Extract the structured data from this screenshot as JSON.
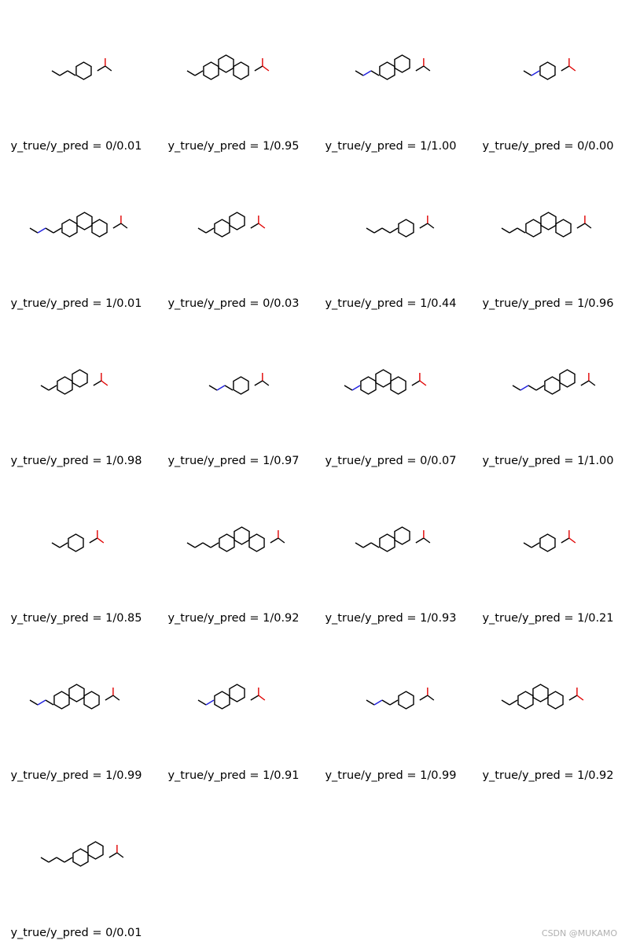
{
  "grid": {
    "molecules": [
      {
        "caption": "y_true/y_pred = 0/0.01"
      },
      {
        "caption": "y_true/y_pred = 1/0.95"
      },
      {
        "caption": "y_true/y_pred = 1/1.00"
      },
      {
        "caption": "y_true/y_pred = 0/0.00"
      },
      {
        "caption": "y_true/y_pred = 1/0.01"
      },
      {
        "caption": "y_true/y_pred = 0/0.03"
      },
      {
        "caption": "y_true/y_pred = 1/0.44"
      },
      {
        "caption": "y_true/y_pred = 1/0.96"
      },
      {
        "caption": "y_true/y_pred = 1/0.98"
      },
      {
        "caption": "y_true/y_pred = 1/0.97"
      },
      {
        "caption": "y_true/y_pred = 0/0.07"
      },
      {
        "caption": "y_true/y_pred = 1/1.00"
      },
      {
        "caption": "y_true/y_pred = 1/0.85"
      },
      {
        "caption": "y_true/y_pred = 1/0.92"
      },
      {
        "caption": "y_true/y_pred = 1/0.93"
      },
      {
        "caption": "y_true/y_pred = 1/0.21"
      },
      {
        "caption": "y_true/y_pred = 1/0.99"
      },
      {
        "caption": "y_true/y_pred = 1/0.91"
      },
      {
        "caption": "y_true/y_pred = 1/0.99"
      },
      {
        "caption": "y_true/y_pred = 1/0.92"
      },
      {
        "caption": "y_true/y_pred = 0/0.01"
      }
    ]
  },
  "watermark": "CSDN @MUKAMO"
}
